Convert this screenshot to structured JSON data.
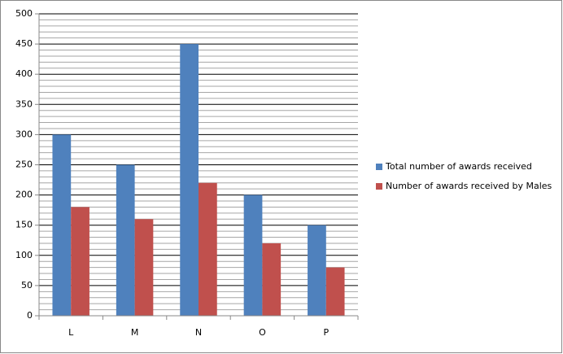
{
  "chart_data": {
    "type": "bar",
    "categories": [
      "L",
      "M",
      "N",
      "O",
      "P"
    ],
    "series": [
      {
        "name": "Total number of awards received",
        "color": "#4f81bd",
        "values": [
          300,
          250,
          450,
          200,
          150
        ]
      },
      {
        "name": "Number of awards received by Males",
        "color": "#c0504d",
        "values": [
          180,
          160,
          220,
          120,
          80
        ]
      }
    ],
    "ylim": [
      0,
      500
    ],
    "yticks": [
      0,
      50,
      100,
      150,
      200,
      250,
      300,
      350,
      400,
      450,
      500
    ],
    "grid": true,
    "minor_grid": true,
    "legend": "right"
  }
}
